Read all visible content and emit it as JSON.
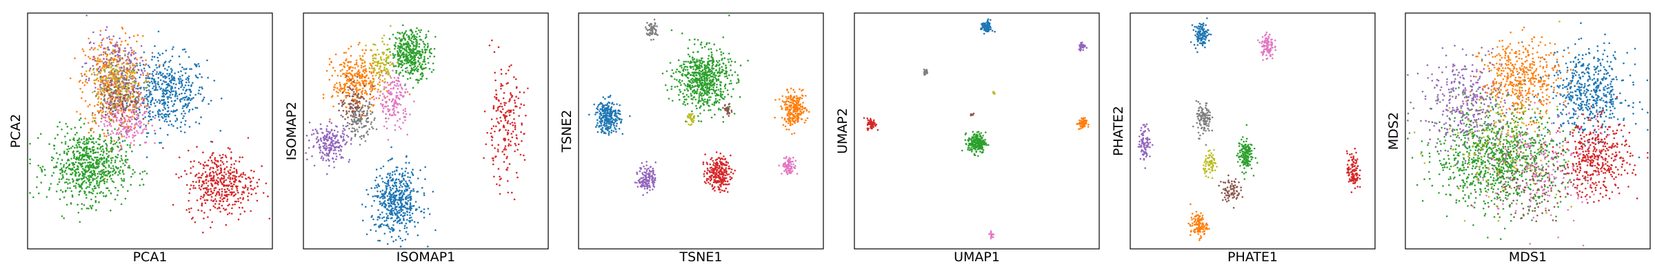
{
  "figure": {
    "panels": [
      {
        "xlabel": "PCA1",
        "ylabel": "PCA2"
      },
      {
        "xlabel": "ISOMAP1",
        "ylabel": "ISOMAP2"
      },
      {
        "xlabel": "TSNE1",
        "ylabel": "TSNE2"
      },
      {
        "xlabel": "UMAP1",
        "ylabel": "UMAP2"
      },
      {
        "xlabel": "PHATE1",
        "ylabel": "PHATE2"
      },
      {
        "xlabel": "MDS1",
        "ylabel": "MDS2"
      }
    ]
  },
  "chart_data": [
    {
      "type": "scatter",
      "xlabel": "PCA1",
      "ylabel": "PCA2",
      "xticks": [],
      "yticks": [],
      "grid": false,
      "legend": false,
      "xlim": [
        0,
        1
      ],
      "ylim": [
        0,
        1
      ],
      "series": [
        {
          "color": "#1f77b4",
          "x": 0.57,
          "y": 0.66,
          "sx": 0.08,
          "sy": 0.08,
          "n": 480
        },
        {
          "color": "#ff7f0e",
          "x": 0.35,
          "y": 0.7,
          "sx": 0.06,
          "sy": 0.1,
          "n": 480
        },
        {
          "color": "#2ca02c",
          "x": 0.25,
          "y": 0.35,
          "sx": 0.08,
          "sy": 0.075,
          "n": 700
        },
        {
          "color": "#d62728",
          "x": 0.79,
          "y": 0.28,
          "sx": 0.07,
          "sy": 0.07,
          "n": 420
        },
        {
          "color": "#9467bd",
          "x": 0.36,
          "y": 0.78,
          "sx": 0.06,
          "sy": 0.07,
          "n": 180
        },
        {
          "color": "#e377c2",
          "x": 0.4,
          "y": 0.55,
          "sx": 0.05,
          "sy": 0.06,
          "n": 200
        },
        {
          "color": "#7f7f7f",
          "x": 0.37,
          "y": 0.68,
          "sx": 0.05,
          "sy": 0.06,
          "n": 120
        },
        {
          "color": "#bcbd22",
          "x": 0.36,
          "y": 0.72,
          "sx": 0.05,
          "sy": 0.06,
          "n": 120
        },
        {
          "color": "#8c564b",
          "x": 0.38,
          "y": 0.62,
          "sx": 0.04,
          "sy": 0.05,
          "n": 80
        }
      ]
    },
    {
      "type": "scatter",
      "xlabel": "ISOMAP1",
      "ylabel": "ISOMAP2",
      "xticks": [],
      "yticks": [],
      "grid": false,
      "legend": false,
      "xlim": [
        0,
        1
      ],
      "ylim": [
        0,
        1
      ],
      "series": [
        {
          "color": "#1f77b4",
          "x": 0.38,
          "y": 0.2,
          "sx": 0.05,
          "sy": 0.07,
          "n": 500
        },
        {
          "color": "#ff7f0e",
          "x": 0.22,
          "y": 0.71,
          "sx": 0.05,
          "sy": 0.06,
          "n": 320
        },
        {
          "color": "#2ca02c",
          "x": 0.44,
          "y": 0.83,
          "sx": 0.04,
          "sy": 0.05,
          "n": 400
        },
        {
          "color": "#d62728",
          "x": 0.82,
          "y": 0.52,
          "sx": 0.04,
          "sy": 0.12,
          "n": 200
        },
        {
          "color": "#9467bd",
          "x": 0.11,
          "y": 0.45,
          "sx": 0.04,
          "sy": 0.04,
          "n": 200
        },
        {
          "color": "#8c564b",
          "x": 0.21,
          "y": 0.62,
          "sx": 0.03,
          "sy": 0.04,
          "n": 100
        },
        {
          "color": "#e377c2",
          "x": 0.37,
          "y": 0.63,
          "sx": 0.03,
          "sy": 0.06,
          "n": 160
        },
        {
          "color": "#7f7f7f",
          "x": 0.23,
          "y": 0.54,
          "sx": 0.03,
          "sy": 0.04,
          "n": 120
        },
        {
          "color": "#bcbd22",
          "x": 0.32,
          "y": 0.78,
          "sx": 0.03,
          "sy": 0.05,
          "n": 100
        }
      ]
    },
    {
      "type": "scatter",
      "xlabel": "TSNE1",
      "ylabel": "TSNE2",
      "xticks": [],
      "yticks": [],
      "grid": false,
      "legend": false,
      "xlim": [
        0,
        1
      ],
      "ylim": [
        0,
        1
      ],
      "series": [
        {
          "color": "#1f77b4",
          "x": 0.12,
          "y": 0.56,
          "sx": 0.025,
          "sy": 0.035,
          "n": 260
        },
        {
          "color": "#ff7f0e",
          "x": 0.88,
          "y": 0.59,
          "sx": 0.025,
          "sy": 0.035,
          "n": 240
        },
        {
          "color": "#2ca02c",
          "x": 0.51,
          "y": 0.72,
          "sx": 0.055,
          "sy": 0.065,
          "n": 650
        },
        {
          "color": "#d62728",
          "x": 0.57,
          "y": 0.32,
          "sx": 0.025,
          "sy": 0.035,
          "n": 240
        },
        {
          "color": "#9467bd",
          "x": 0.28,
          "y": 0.3,
          "sx": 0.018,
          "sy": 0.028,
          "n": 140
        },
        {
          "color": "#8c564b",
          "x": 0.61,
          "y": 0.59,
          "sx": 0.008,
          "sy": 0.012,
          "n": 30
        },
        {
          "color": "#e377c2",
          "x": 0.86,
          "y": 0.35,
          "sx": 0.014,
          "sy": 0.018,
          "n": 90
        },
        {
          "color": "#7f7f7f",
          "x": 0.3,
          "y": 0.93,
          "sx": 0.012,
          "sy": 0.018,
          "n": 60
        },
        {
          "color": "#bcbd22",
          "x": 0.46,
          "y": 0.55,
          "sx": 0.008,
          "sy": 0.012,
          "n": 30
        }
      ]
    },
    {
      "type": "scatter",
      "xlabel": "UMAP1",
      "ylabel": "UMAP2",
      "xticks": [],
      "yticks": [],
      "grid": false,
      "legend": false,
      "xlim": [
        0,
        1
      ],
      "ylim": [
        0,
        1
      ],
      "series": [
        {
          "color": "#1f77b4",
          "x": 0.54,
          "y": 0.94,
          "sx": 0.011,
          "sy": 0.014,
          "n": 90
        },
        {
          "color": "#ff7f0e",
          "x": 0.93,
          "y": 0.53,
          "sx": 0.009,
          "sy": 0.012,
          "n": 60
        },
        {
          "color": "#2ca02c",
          "x": 0.5,
          "y": 0.45,
          "sx": 0.018,
          "sy": 0.022,
          "n": 220
        },
        {
          "color": "#d62728",
          "x": 0.07,
          "y": 0.53,
          "sx": 0.009,
          "sy": 0.012,
          "n": 60
        },
        {
          "color": "#9467bd",
          "x": 0.93,
          "y": 0.86,
          "sx": 0.007,
          "sy": 0.009,
          "n": 40
        },
        {
          "color": "#8c564b",
          "x": 0.48,
          "y": 0.57,
          "sx": 0.003,
          "sy": 0.004,
          "n": 10
        },
        {
          "color": "#e377c2",
          "x": 0.56,
          "y": 0.06,
          "sx": 0.004,
          "sy": 0.006,
          "n": 20
        },
        {
          "color": "#7f7f7f",
          "x": 0.29,
          "y": 0.75,
          "sx": 0.005,
          "sy": 0.006,
          "n": 20
        },
        {
          "color": "#bcbd22",
          "x": 0.57,
          "y": 0.66,
          "sx": 0.002,
          "sy": 0.003,
          "n": 6
        }
      ]
    },
    {
      "type": "scatter",
      "xlabel": "PHATE1",
      "ylabel": "PHATE2",
      "xticks": [],
      "yticks": [],
      "grid": false,
      "legend": false,
      "xlim": [
        0,
        1
      ],
      "ylim": [
        0,
        1
      ],
      "series": [
        {
          "color": "#1f77b4",
          "x": 0.29,
          "y": 0.91,
          "sx": 0.015,
          "sy": 0.025,
          "n": 110
        },
        {
          "color": "#ff7f0e",
          "x": 0.28,
          "y": 0.1,
          "sx": 0.017,
          "sy": 0.025,
          "n": 110
        },
        {
          "color": "#2ca02c",
          "x": 0.47,
          "y": 0.4,
          "sx": 0.015,
          "sy": 0.035,
          "n": 150
        },
        {
          "color": "#d62728",
          "x": 0.91,
          "y": 0.33,
          "sx": 0.012,
          "sy": 0.04,
          "n": 110
        },
        {
          "color": "#9467bd",
          "x": 0.06,
          "y": 0.45,
          "sx": 0.012,
          "sy": 0.035,
          "n": 90
        },
        {
          "color": "#8c564b",
          "x": 0.41,
          "y": 0.25,
          "sx": 0.02,
          "sy": 0.025,
          "n": 80
        },
        {
          "color": "#e377c2",
          "x": 0.56,
          "y": 0.86,
          "sx": 0.013,
          "sy": 0.028,
          "n": 100
        },
        {
          "color": "#7f7f7f",
          "x": 0.3,
          "y": 0.55,
          "sx": 0.015,
          "sy": 0.035,
          "n": 110
        },
        {
          "color": "#bcbd22",
          "x": 0.33,
          "y": 0.36,
          "sx": 0.015,
          "sy": 0.022,
          "n": 70
        }
      ]
    },
    {
      "type": "scatter",
      "xlabel": "MDS1",
      "ylabel": "MDS2",
      "xticks": [],
      "yticks": [],
      "grid": false,
      "legend": false,
      "xlim": [
        0,
        1
      ],
      "ylim": [
        0,
        1
      ],
      "series": [
        {
          "color": "#1f77b4",
          "x": 0.75,
          "y": 0.66,
          "sx": 0.08,
          "sy": 0.09,
          "n": 500
        },
        {
          "color": "#ff7f0e",
          "x": 0.47,
          "y": 0.72,
          "sx": 0.08,
          "sy": 0.08,
          "n": 450
        },
        {
          "color": "#2ca02c",
          "x": 0.38,
          "y": 0.38,
          "sx": 0.13,
          "sy": 0.1,
          "n": 900
        },
        {
          "color": "#d62728",
          "x": 0.78,
          "y": 0.38,
          "sx": 0.07,
          "sy": 0.08,
          "n": 400
        },
        {
          "color": "#9467bd",
          "x": 0.24,
          "y": 0.63,
          "sx": 0.08,
          "sy": 0.09,
          "n": 260
        },
        {
          "color": "#8c564b",
          "x": 0.5,
          "y": 0.3,
          "sx": 0.09,
          "sy": 0.09,
          "n": 150
        },
        {
          "color": "#e377c2",
          "x": 0.55,
          "y": 0.35,
          "sx": 0.12,
          "sy": 0.12,
          "n": 200
        },
        {
          "color": "#7f7f7f",
          "x": 0.3,
          "y": 0.55,
          "sx": 0.12,
          "sy": 0.12,
          "n": 150
        },
        {
          "color": "#bcbd22",
          "x": 0.4,
          "y": 0.45,
          "sx": 0.12,
          "sy": 0.12,
          "n": 150
        }
      ]
    }
  ]
}
